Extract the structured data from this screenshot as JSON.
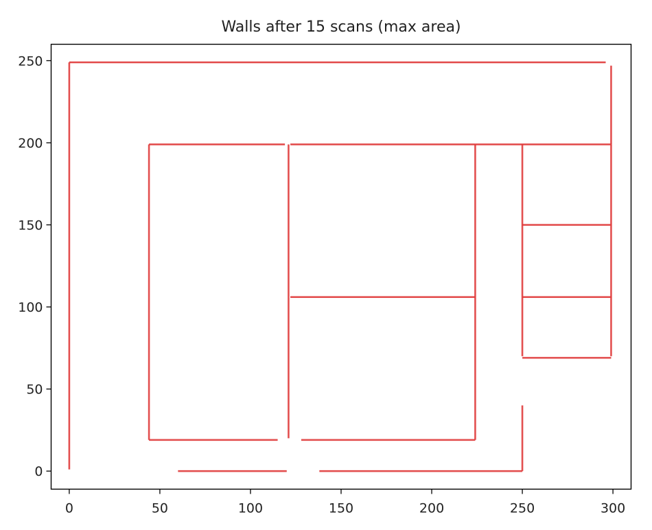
{
  "chart_data": {
    "type": "line",
    "title": "Walls after 15 scans (max area)",
    "xlabel": "",
    "ylabel": "",
    "xlim": [
      -10,
      310
    ],
    "ylim": [
      -11,
      260
    ],
    "xticks": [
      0,
      50,
      100,
      150,
      200,
      250,
      300
    ],
    "yticks": [
      0,
      50,
      100,
      150,
      200,
      250
    ],
    "grid": false,
    "line_color": "#e03c3c",
    "segments": [
      {
        "x": [
          0,
          296
        ],
        "y": [
          249,
          249
        ]
      },
      {
        "x": [
          0,
          0
        ],
        "y": [
          1,
          249
        ]
      },
      {
        "x": [
          299,
          299
        ],
        "y": [
          199,
          247
        ]
      },
      {
        "x": [
          44,
          119
        ],
        "y": [
          199,
          199
        ]
      },
      {
        "x": [
          122,
          224
        ],
        "y": [
          199,
          199
        ]
      },
      {
        "x": [
          224,
          299
        ],
        "y": [
          199,
          199
        ]
      },
      {
        "x": [
          44,
          44
        ],
        "y": [
          19,
          199
        ]
      },
      {
        "x": [
          121,
          121
        ],
        "y": [
          20,
          199
        ]
      },
      {
        "x": [
          224,
          224
        ],
        "y": [
          19,
          199
        ]
      },
      {
        "x": [
          44,
          115
        ],
        "y": [
          19,
          19
        ]
      },
      {
        "x": [
          128,
          224
        ],
        "y": [
          19,
          19
        ]
      },
      {
        "x": [
          122,
          224
        ],
        "y": [
          106,
          106
        ]
      },
      {
        "x": [
          250,
          250
        ],
        "y": [
          70,
          199
        ]
      },
      {
        "x": [
          299,
          299
        ],
        "y": [
          70,
          199
        ]
      },
      {
        "x": [
          250,
          299
        ],
        "y": [
          150,
          150
        ]
      },
      {
        "x": [
          250,
          299
        ],
        "y": [
          106,
          106
        ]
      },
      {
        "x": [
          250,
          299
        ],
        "y": [
          69,
          69
        ]
      },
      {
        "x": [
          250,
          250
        ],
        "y": [
          0,
          40
        ]
      },
      {
        "x": [
          60,
          120
        ],
        "y": [
          0,
          0
        ]
      },
      {
        "x": [
          138,
          250
        ],
        "y": [
          0,
          0
        ]
      }
    ]
  }
}
